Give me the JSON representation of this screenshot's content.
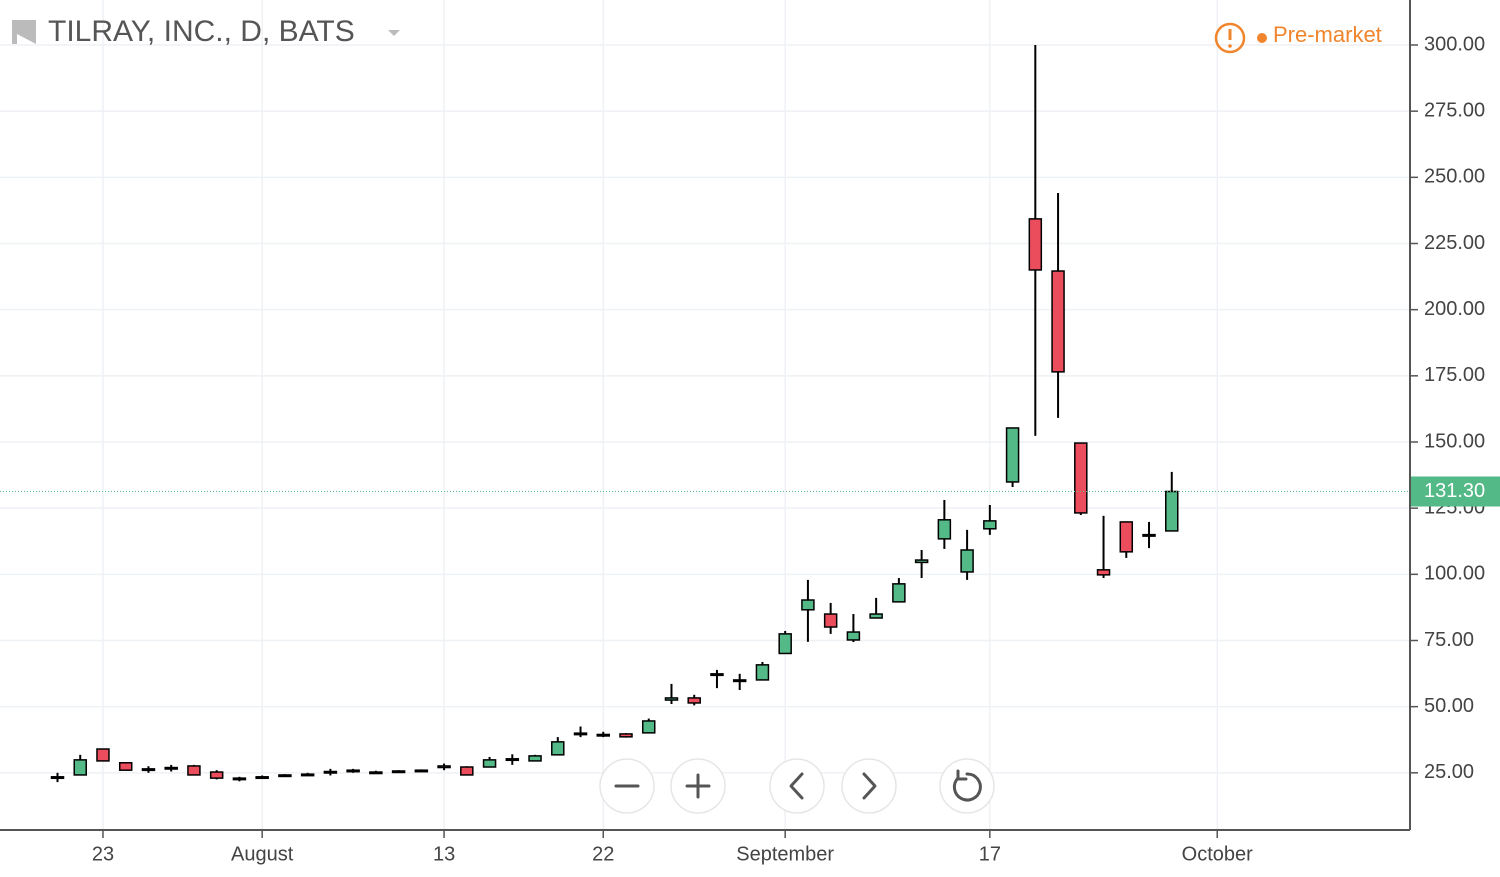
{
  "chart_data": {
    "type": "candlestick",
    "title": "TILRAY, INC., D, BATS",
    "status": "Pre-market",
    "categories": [
      null,
      null,
      "23",
      null,
      null,
      null,
      null,
      null,
      null,
      "August",
      null,
      null,
      null,
      null,
      null,
      null,
      null,
      "13",
      null,
      null,
      null,
      null,
      null,
      null,
      "22",
      null,
      null,
      null,
      null,
      null,
      null,
      null,
      "September",
      null,
      null,
      null,
      null,
      null,
      null,
      null,
      null,
      "17",
      null,
      null,
      null,
      null,
      null,
      null,
      null,
      null,
      null,
      "October"
    ],
    "open": [
      23.5,
      24.2,
      34,
      28.8,
      26.5,
      26.5,
      27.6,
      25.3,
      23,
      23.5,
      24,
      24.5,
      25,
      25.5,
      25.3,
      25.5,
      25.8,
      27,
      27.2,
      27.2,
      30,
      29.5,
      31.8,
      40,
      39.5,
      39.7,
      40.1,
      52.5,
      53.3,
      62,
      60,
      60.1,
      70.1,
      86.6,
      85,
      75.2,
      83.5,
      89.6,
      104.5,
      113.4,
      100.9,
      117.2,
      134.9,
      234.3,
      214.6,
      149.6,
      101.7,
      119.8,
      115,
      116.4,
      null,
      null
    ],
    "high": [
      25,
      31.8,
      34,
      28.8,
      27.5,
      28,
      28,
      26,
      23.5,
      24,
      24.5,
      25,
      26.5,
      26.5,
      25.8,
      26,
      26.3,
      28.5,
      27.5,
      31,
      32,
      31.8,
      38.5,
      42.5,
      40.5,
      40,
      45.5,
      58.6,
      54.5,
      63.9,
      62.4,
      66.9,
      78.6,
      97.9,
      89.2,
      85,
      91.1,
      98.6,
      109.2,
      128.1,
      116.8,
      126.2,
      155.3,
      300,
      244.1,
      149.6,
      122.1,
      119.8,
      119.8,
      138.7,
      null,
      null
    ],
    "low": [
      21.5,
      24,
      29.5,
      26,
      25,
      25.5,
      24,
      22.5,
      21.8,
      23,
      24,
      24.3,
      24,
      25,
      25,
      25.3,
      25.6,
      26,
      24,
      27,
      28,
      29.5,
      31.8,
      38.5,
      38.5,
      38.3,
      40.1,
      51,
      50.5,
      57,
      56.3,
      60.1,
      70.1,
      74.5,
      77.5,
      74.4,
      83.5,
      89.6,
      98.6,
      109.6,
      97.9,
      114.9,
      133,
      152.3,
      159.1,
      122.4,
      98.6,
      106.2,
      109.9,
      116.4,
      null,
      null
    ],
    "close": [
      23,
      29.9,
      29.5,
      26,
      26,
      27,
      24.2,
      23,
      22.5,
      23.5,
      24.2,
      24.5,
      25.5,
      26,
      25.3,
      25.7,
      26,
      27.6,
      24.2,
      29.9,
      30.3,
      31.4,
      36.7,
      40,
      39.3,
      38.6,
      44.6,
      53.3,
      51.4,
      62.4,
      60.1,
      65.8,
      77.5,
      90.3,
      80.1,
      78.2,
      85,
      96.4,
      105.4,
      120.6,
      109.2,
      120.2,
      155.3,
      215,
      176.5,
      123.2,
      99.8,
      108.5,
      114.9,
      131.3,
      null,
      null
    ],
    "up_color": "#53b987",
    "down_color": "#eb4d5c",
    "ylim": [
      3.4,
      317
    ],
    "yticks": [
      {
        "value": 25,
        "label": "25.00"
      },
      {
        "value": 50,
        "label": "50.00"
      },
      {
        "value": 75,
        "label": "75.00"
      },
      {
        "value": 100,
        "label": "100.00"
      },
      {
        "value": 125,
        "label": "125.00"
      },
      {
        "value": 150,
        "label": "150.00"
      },
      {
        "value": 175,
        "label": "175.00"
      },
      {
        "value": 200,
        "label": "200.00"
      },
      {
        "value": 225,
        "label": "225.00"
      },
      {
        "value": 250,
        "label": "250.00"
      },
      {
        "value": 275,
        "label": "275.00"
      },
      {
        "value": 300,
        "label": "300.00"
      }
    ],
    "last_price": {
      "value": 131.3,
      "label": "131.30"
    },
    "grid": true
  }
}
